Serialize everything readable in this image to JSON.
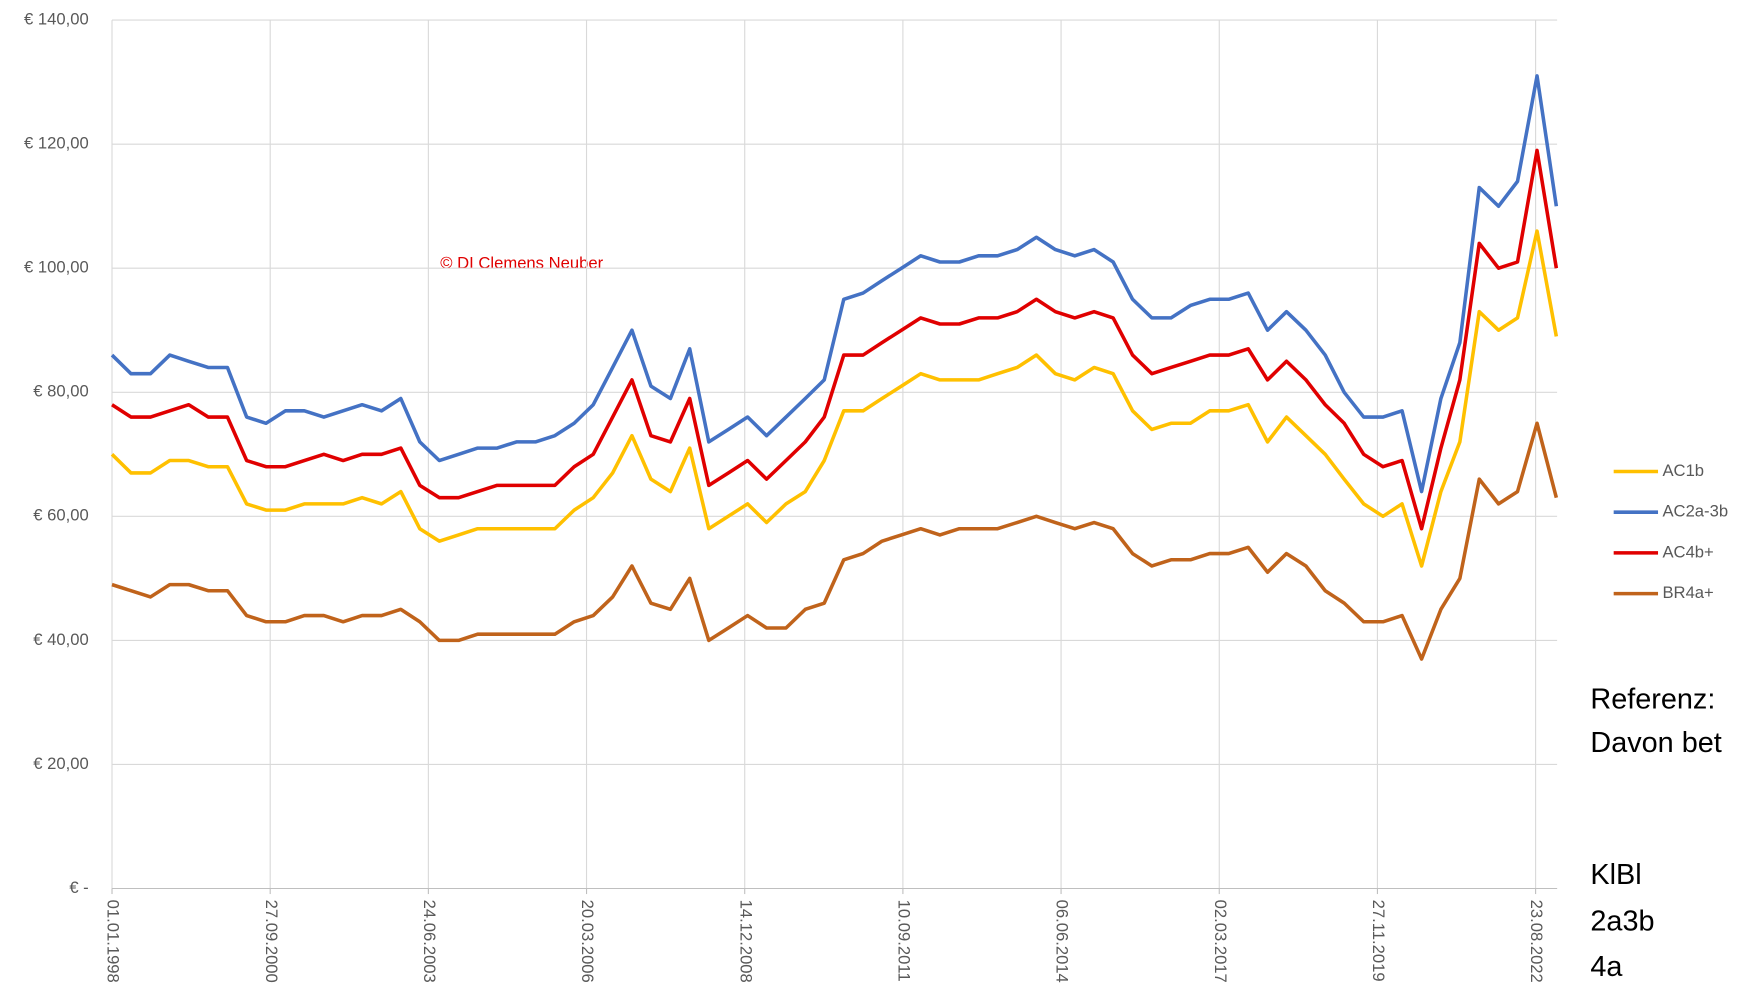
{
  "chart_data": {
    "type": "line",
    "annotation": "© DI Clemens Neuber",
    "side_text": [
      "Referenz:",
      "Davon bet",
      "KlBl",
      "2a3b",
      "4a"
    ],
    "x": [
      "01.01.1998",
      "01.05.1998",
      "01.09.1998",
      "01.01.1999",
      "01.05.1999",
      "01.09.1999",
      "01.01.2000",
      "01.05.2000",
      "01.09.2000",
      "01.01.2001",
      "01.05.2001",
      "01.09.2001",
      "01.01.2002",
      "01.05.2002",
      "01.09.2002",
      "01.01.2003",
      "01.05.2003",
      "01.09.2003",
      "01.01.2004",
      "01.05.2004",
      "01.09.2004",
      "01.01.2005",
      "01.05.2005",
      "01.09.2005",
      "01.01.2006",
      "01.05.2006",
      "01.09.2006",
      "01.01.2007",
      "01.05.2007",
      "01.09.2007",
      "01.01.2008",
      "01.05.2008",
      "01.09.2008",
      "01.01.2009",
      "01.05.2009",
      "01.09.2009",
      "01.01.2010",
      "01.05.2010",
      "01.09.2010",
      "01.01.2011",
      "01.05.2011",
      "01.09.2011",
      "01.01.2012",
      "01.05.2012",
      "01.09.2012",
      "01.01.2013",
      "01.05.2013",
      "01.09.2013",
      "01.01.2014",
      "01.05.2014",
      "01.09.2014",
      "01.01.2015",
      "01.05.2015",
      "01.09.2015",
      "01.01.2016",
      "01.05.2016",
      "01.09.2016",
      "01.01.2017",
      "01.05.2017",
      "01.09.2017",
      "01.01.2018",
      "01.05.2018",
      "01.09.2018",
      "01.01.2019",
      "01.05.2019",
      "01.09.2019",
      "01.01.2020",
      "01.05.2020",
      "01.09.2020",
      "01.01.2021",
      "01.05.2021",
      "01.09.2021",
      "01.01.2022",
      "01.05.2022",
      "01.09.2022",
      "01.01.2023"
    ],
    "series": [
      {
        "name": "AC1b",
        "color": "#ffc000",
        "values": [
          70,
          67,
          67,
          69,
          69,
          68,
          68,
          62,
          61,
          61,
          62,
          62,
          62,
          63,
          62,
          64,
          58,
          56,
          57,
          58,
          58,
          58,
          58,
          58,
          61,
          63,
          67,
          73,
          66,
          64,
          71,
          58,
          60,
          62,
          59,
          62,
          64,
          69,
          77,
          77,
          79,
          81,
          83,
          82,
          82,
          82,
          83,
          84,
          86,
          83,
          82,
          84,
          83,
          77,
          74,
          75,
          75,
          77,
          77,
          78,
          72,
          76,
          73,
          70,
          66,
          62,
          60,
          62,
          52,
          64,
          72,
          93,
          90,
          92,
          106,
          89
        ]
      },
      {
        "name": "AC2a-3b",
        "color": "#4472c4",
        "values": [
          86,
          83,
          83,
          86,
          85,
          84,
          84,
          76,
          75,
          77,
          77,
          76,
          77,
          78,
          77,
          79,
          72,
          69,
          70,
          71,
          71,
          72,
          72,
          73,
          75,
          78,
          84,
          90,
          81,
          79,
          87,
          72,
          74,
          76,
          73,
          76,
          79,
          82,
          95,
          96,
          98,
          100,
          102,
          101,
          101,
          102,
          102,
          103,
          105,
          103,
          102,
          103,
          101,
          95,
          92,
          92,
          94,
          95,
          95,
          96,
          90,
          93,
          90,
          86,
          80,
          76,
          76,
          77,
          64,
          79,
          88,
          113,
          110,
          114,
          131,
          110
        ]
      },
      {
        "name": "AC4b+",
        "color": "#e00000",
        "values": [
          78,
          76,
          76,
          77,
          78,
          76,
          76,
          69,
          68,
          68,
          69,
          70,
          69,
          70,
          70,
          71,
          65,
          63,
          63,
          64,
          65,
          65,
          65,
          65,
          68,
          70,
          76,
          82,
          73,
          72,
          79,
          65,
          67,
          69,
          66,
          69,
          72,
          76,
          86,
          86,
          88,
          90,
          92,
          91,
          91,
          92,
          92,
          93,
          95,
          93,
          92,
          93,
          92,
          86,
          83,
          84,
          85,
          86,
          86,
          87,
          82,
          85,
          82,
          78,
          75,
          70,
          68,
          69,
          58,
          71,
          82,
          104,
          100,
          101,
          119,
          100
        ]
      },
      {
        "name": "BR4a+",
        "color": "#c0631b",
        "values": [
          49,
          48,
          47,
          49,
          49,
          48,
          48,
          44,
          43,
          43,
          44,
          44,
          43,
          44,
          44,
          45,
          43,
          40,
          40,
          41,
          41,
          41,
          41,
          41,
          43,
          44,
          47,
          52,
          46,
          45,
          50,
          40,
          42,
          44,
          42,
          42,
          45,
          46,
          53,
          54,
          56,
          57,
          58,
          57,
          58,
          58,
          58,
          59,
          60,
          59,
          58,
          59,
          58,
          54,
          52,
          53,
          53,
          54,
          54,
          55,
          51,
          54,
          52,
          48,
          46,
          43,
          43,
          44,
          37,
          45,
          50,
          66,
          62,
          64,
          75,
          63
        ]
      }
    ],
    "xlim": [
      "01.01.1998",
      "06.01.2023"
    ],
    "xticks": [
      "01.01.1998",
      "27.09.2000",
      "24.06.2003",
      "20.03.2006",
      "14.12.2008",
      "10.09.2011",
      "06.06.2014",
      "02.03.2017",
      "27.11.2019",
      "23.08.2022"
    ],
    "ylim": [
      0,
      140
    ],
    "yticks": [
      {
        "value": 0,
        "label": "€ -"
      },
      {
        "value": 20,
        "label": "€ 20,00"
      },
      {
        "value": 40,
        "label": "€ 40,00"
      },
      {
        "value": 60,
        "label": "€ 60,00"
      },
      {
        "value": 80,
        "label": "€ 80,00"
      },
      {
        "value": 100,
        "label": "€ 100,00"
      },
      {
        "value": 120,
        "label": "€ 120,00"
      },
      {
        "value": 140,
        "label": "€ 140,00"
      }
    ],
    "grid": true,
    "legend": "right"
  }
}
